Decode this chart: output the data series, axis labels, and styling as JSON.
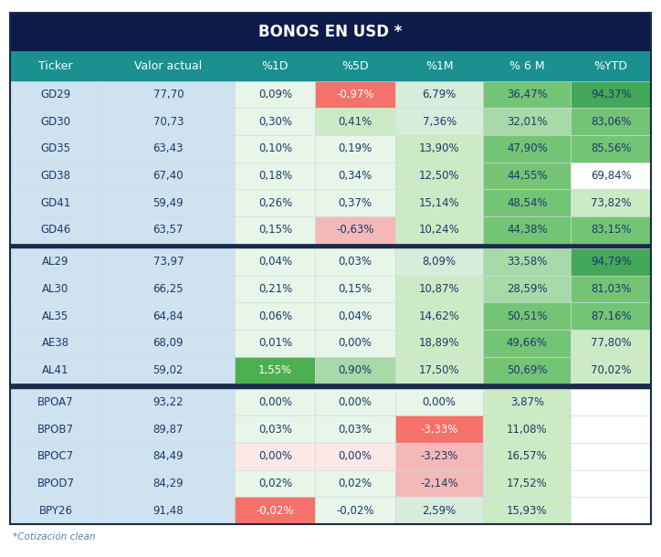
{
  "title": "BONOS EN USD *",
  "title_bg": "#0d1b4b",
  "title_color": "#ffffff",
  "header_bg": "#1a9090",
  "header_color": "#ffffff",
  "col_labels": [
    "Ticker",
    "Valor actual",
    "%1D",
    "%5D",
    "%1M",
    "% 6 M",
    "%YTD"
  ],
  "footnote": "*Cotización clean",
  "rows": [
    [
      "GD29",
      "77,70",
      "0,09%",
      "-0,97%",
      "6,79%",
      "36,47%",
      "94,37%"
    ],
    [
      "GD30",
      "70,73",
      "0,30%",
      "0,41%",
      "7,36%",
      "32,01%",
      "83,06%"
    ],
    [
      "GD35",
      "63,43",
      "0,10%",
      "0,19%",
      "13,90%",
      "47,90%",
      "85,56%"
    ],
    [
      "GD38",
      "67,40",
      "0,18%",
      "0,34%",
      "12,50%",
      "44,55%",
      "69,84%"
    ],
    [
      "GD41",
      "59,49",
      "0,26%",
      "0,37%",
      "15,14%",
      "48,54%",
      "73,82%"
    ],
    [
      "GD46",
      "63,57",
      "0,15%",
      "-0,63%",
      "10,24%",
      "44,38%",
      "83,15%"
    ],
    null,
    [
      "AL29",
      "73,97",
      "0,04%",
      "0,03%",
      "8,09%",
      "33,58%",
      "94,79%"
    ],
    [
      "AL30",
      "66,25",
      "0,21%",
      "0,15%",
      "10,87%",
      "28,59%",
      "81,03%"
    ],
    [
      "AL35",
      "64,84",
      "0,06%",
      "0,04%",
      "14,62%",
      "50,51%",
      "87,16%"
    ],
    [
      "AE38",
      "68,09",
      "0,01%",
      "0,00%",
      "18,89%",
      "49,66%",
      "77,80%"
    ],
    [
      "AL41",
      "59,02",
      "1,55%",
      "0,90%",
      "17,50%",
      "50,69%",
      "70,02%"
    ],
    null,
    [
      "BPOA7",
      "93,22",
      "0,00%",
      "0,00%",
      "0,00%",
      "3,87%",
      ""
    ],
    [
      "BPOB7",
      "89,87",
      "0,03%",
      "0,03%",
      "-3,33%",
      "11,08%",
      ""
    ],
    [
      "BPOC7",
      "84,49",
      "0,00%",
      "0,00%",
      "-3,23%",
      "16,57%",
      ""
    ],
    [
      "BPOD7",
      "84,29",
      "0,02%",
      "0,02%",
      "-2,14%",
      "17,52%",
      ""
    ],
    [
      "BPY26",
      "91,48",
      "-0,02%",
      "-0,02%",
      "2,59%",
      "15,93%",
      ""
    ]
  ],
  "cell_colors": {
    "GD29": [
      "#cfe2f0",
      "#cfe2f0",
      "#e8f5e9",
      "#f4726a",
      "#d5edda",
      "#74c476",
      "#43a85a"
    ],
    "GD30": [
      "#cfe2f0",
      "#cfe2f0",
      "#e8f5e9",
      "#ccebc5",
      "#d5edda",
      "#a8d9a8",
      "#74c476"
    ],
    "GD35": [
      "#cfe2f0",
      "#cfe2f0",
      "#e8f5e9",
      "#e8f5e9",
      "#ccebc5",
      "#74c476",
      "#74c476"
    ],
    "GD38": [
      "#cfe2f0",
      "#cfe2f0",
      "#e8f5e9",
      "#e8f5e9",
      "#ccebc5",
      "#74c476",
      "#ffffff"
    ],
    "GD41": [
      "#cfe2f0",
      "#cfe2f0",
      "#e8f5e9",
      "#e8f5e9",
      "#ccebc5",
      "#74c476",
      "#ccebc5"
    ],
    "GD46": [
      "#cfe2f0",
      "#cfe2f0",
      "#e8f5e9",
      "#f4b8b8",
      "#ccebc5",
      "#74c476",
      "#74c476"
    ],
    "AL29": [
      "#cfe2f0",
      "#cfe2f0",
      "#e8f5e9",
      "#e8f5e9",
      "#d5edda",
      "#a8d9a8",
      "#43a85a"
    ],
    "AL30": [
      "#cfe2f0",
      "#cfe2f0",
      "#e8f5e9",
      "#e8f5e9",
      "#ccebc5",
      "#a8d9a8",
      "#74c476"
    ],
    "AL35": [
      "#cfe2f0",
      "#cfe2f0",
      "#e8f5e9",
      "#e8f5e9",
      "#ccebc5",
      "#74c476",
      "#74c476"
    ],
    "AE38": [
      "#cfe2f0",
      "#cfe2f0",
      "#e8f5e9",
      "#e8f5e9",
      "#ccebc5",
      "#74c476",
      "#ccebc5"
    ],
    "AL41": [
      "#cfe2f0",
      "#cfe2f0",
      "#4caf50",
      "#a8d9a8",
      "#ccebc5",
      "#74c476",
      "#ccebc5"
    ],
    "BPOA7": [
      "#cfe2f0",
      "#cfe2f0",
      "#e8f5e9",
      "#e8f5e9",
      "#e8f5e9",
      "#ccebc5",
      ""
    ],
    "BPOB7": [
      "#cfe2f0",
      "#cfe2f0",
      "#e8f5e9",
      "#e8f5e9",
      "#f4726a",
      "#ccebc5",
      ""
    ],
    "BPOC7": [
      "#cfe2f0",
      "#cfe2f0",
      "#fde8e8",
      "#fde8e8",
      "#f4b8b8",
      "#ccebc5",
      ""
    ],
    "BPOD7": [
      "#cfe2f0",
      "#cfe2f0",
      "#e8f5e9",
      "#e8f5e9",
      "#f4b8b8",
      "#ccebc5",
      ""
    ],
    "BPY26": [
      "#cfe2f0",
      "#cfe2f0",
      "#f4726a",
      "#e8f5e9",
      "#d5edda",
      "#ccebc5",
      ""
    ]
  },
  "bg_color": "#ffffff",
  "separator_color": "#1a2a4a",
  "text_color_dark": "#1a3a6a",
  "text_color_white": "#ffffff",
  "footnote_color": "#5b7fa6"
}
